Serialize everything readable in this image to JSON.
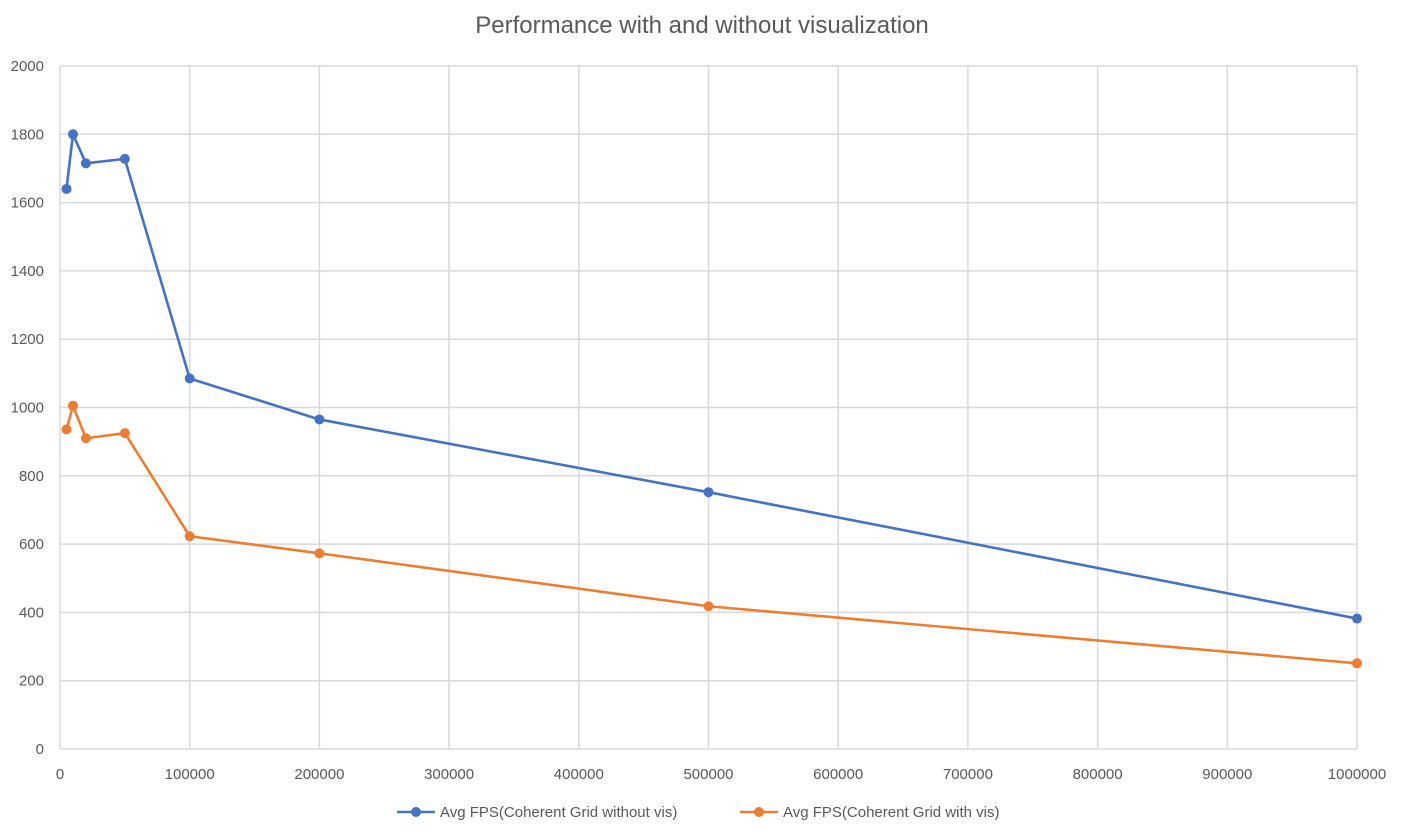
{
  "chart_data": {
    "type": "line",
    "title": "Performance with and without visualization",
    "xlabel": "",
    "ylabel": "",
    "xlim": [
      0,
      1000000
    ],
    "ylim": [
      0,
      2000
    ],
    "x_ticks": [
      0,
      100000,
      200000,
      300000,
      400000,
      500000,
      600000,
      700000,
      800000,
      900000,
      1000000
    ],
    "y_ticks": [
      0,
      200,
      400,
      600,
      800,
      1000,
      1200,
      1400,
      1600,
      1800,
      2000
    ],
    "grid": true,
    "legend_position": "bottom",
    "x": [
      5000,
      10000,
      20000,
      50000,
      100000,
      200000,
      500000,
      1000000
    ],
    "series": [
      {
        "name": "Avg FPS(Coherent Grid without vis)",
        "color": "#4472c4",
        "values": [
          1640,
          1800,
          1715,
          1728,
          1085,
          965,
          752,
          382
        ]
      },
      {
        "name": "Avg FPS(Coherent Grid with vis)",
        "color": "#ed7d31",
        "values": [
          936,
          1005,
          910,
          925,
          623,
          573,
          418,
          251
        ]
      }
    ]
  }
}
